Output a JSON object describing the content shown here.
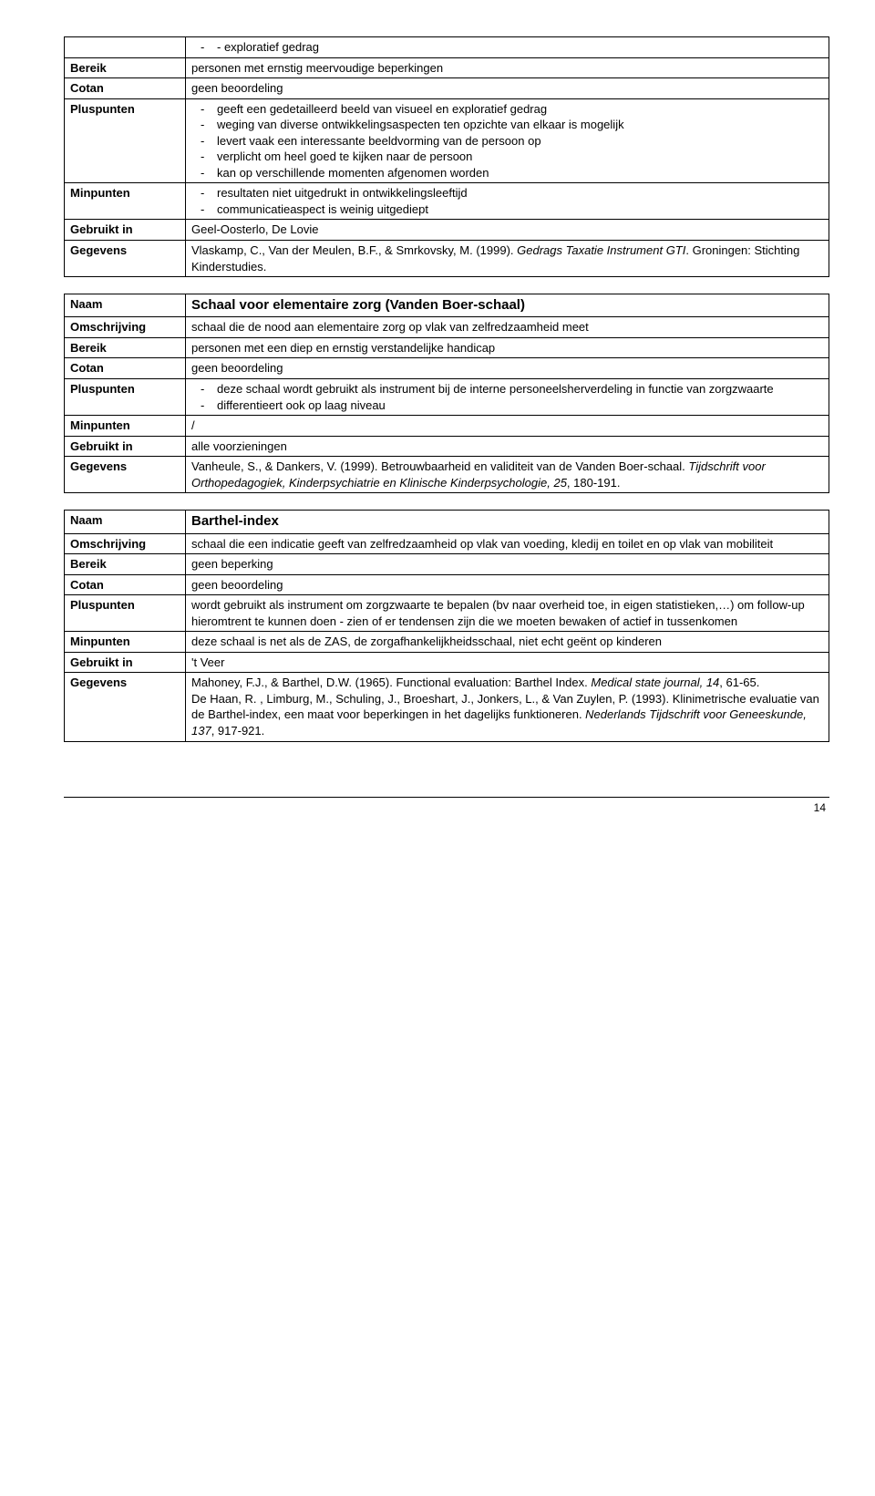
{
  "table1": {
    "row0_cell": "-   exploratief gedrag",
    "bereik_label": "Bereik",
    "bereik_val": "personen met ernstig meervoudige beperkingen",
    "cotan_label": "Cotan",
    "cotan_val": "geen beoordeling",
    "plus_label": "Pluspunten",
    "plus_items": [
      "geeft een gedetailleerd beeld van visueel en exploratief gedrag",
      "weging van diverse ontwikkelingsaspecten ten opzichte van elkaar is mogelijk",
      "levert vaak een interessante beeldvorming van de persoon op",
      "verplicht om heel goed te kijken naar de persoon",
      "kan op verschillende momenten afgenomen worden"
    ],
    "min_label": "Minpunten",
    "min_items": [
      "resultaten niet uitgedrukt in ontwikkelingsleeftijd",
      "communicatieaspect is weinig uitgediept"
    ],
    "gebr_label": "Gebruikt in",
    "gebr_val": "Geel-Oosterlo, De Lovie",
    "geg_label": "Gegevens",
    "geg_pre": "Vlaskamp, C., Van der Meulen, B.F., & Smrkovsky, M. (1999). ",
    "geg_it1": "Gedrags Taxatie Instrument GTI",
    "geg_post": ". Groningen: Stichting Kinderstudies."
  },
  "table2": {
    "naam_label": "Naam",
    "naam_val": "Schaal voor elementaire zorg (Vanden Boer-schaal)",
    "oms_label": "Omschrijving",
    "oms_val": "schaal die de nood aan elementaire zorg op vlak van zelfredzaamheid meet",
    "bereik_label": "Bereik",
    "bereik_val": "personen met een diep en ernstig verstandelijke handicap",
    "cotan_label": "Cotan",
    "cotan_val": "geen beoordeling",
    "plus_label": "Pluspunten",
    "plus_items": [
      "deze schaal wordt gebruikt als instrument bij de interne personeelsherverdeling in functie van zorgzwaarte",
      "differentieert ook op laag niveau"
    ],
    "min_label": "Minpunten",
    "min_val": "/",
    "gebr_label": "Gebruikt in",
    "gebr_val": "alle voorzieningen",
    "geg_label": "Gegevens",
    "geg_pre": "Vanheule, S., & Dankers, V. (1999). Betrouwbaarheid en validiteit van de Vanden Boer-schaal. ",
    "geg_it1": "Tijdschrift voor Orthopedagogiek, Kinderpsychiatrie en Klinische Kinderpsychologie, 25",
    "geg_post": ", 180-191."
  },
  "table3": {
    "naam_label": "Naam",
    "naam_val": "Barthel-index",
    "oms_label": "Omschrijving",
    "oms_val": "schaal die een indicatie geeft van zelfredzaamheid op vlak van voeding, kledij en toilet en op vlak van mobiliteit",
    "bereik_label": "Bereik",
    "bereik_val": "geen beperking",
    "cotan_label": "Cotan",
    "cotan_val": "geen beoordeling",
    "plus_label": "Pluspunten",
    "plus_val": "wordt gebruikt als instrument om zorgzwaarte te bepalen (bv naar overheid toe, in eigen statistieken,…) om follow-up hieromtrent te kunnen doen - zien of er tendensen zijn die we moeten bewaken of actief in tussenkomen",
    "min_label": "Minpunten",
    "min_val": "deze schaal is net als de ZAS, de zorgafhankelijkheidsschaal, niet echt geënt op kinderen",
    "gebr_label": "Gebruikt in",
    "gebr_val": "'t Veer",
    "geg_label": "Gegevens",
    "geg_l1_pre": "Mahoney, F.J., & Barthel, D.W. (1965). Functional evaluation: Barthel Index. ",
    "geg_l1_it": "Medical state journal, 14",
    "geg_l1_post": ", 61-65.",
    "geg_l2_pre": "De Haan, R. , Limburg, M., Schuling, J., Broeshart, J., Jonkers, L., & Van Zuylen, P. (1993). Klinimetrische evaluatie van de Barthel-index, een maat voor beperkingen in het dagelijks funktioneren. ",
    "geg_l2_it": "Nederlands Tijdschrift voor Geneeskunde, 137",
    "geg_l2_post": ", 917-921."
  },
  "page_number": "14"
}
